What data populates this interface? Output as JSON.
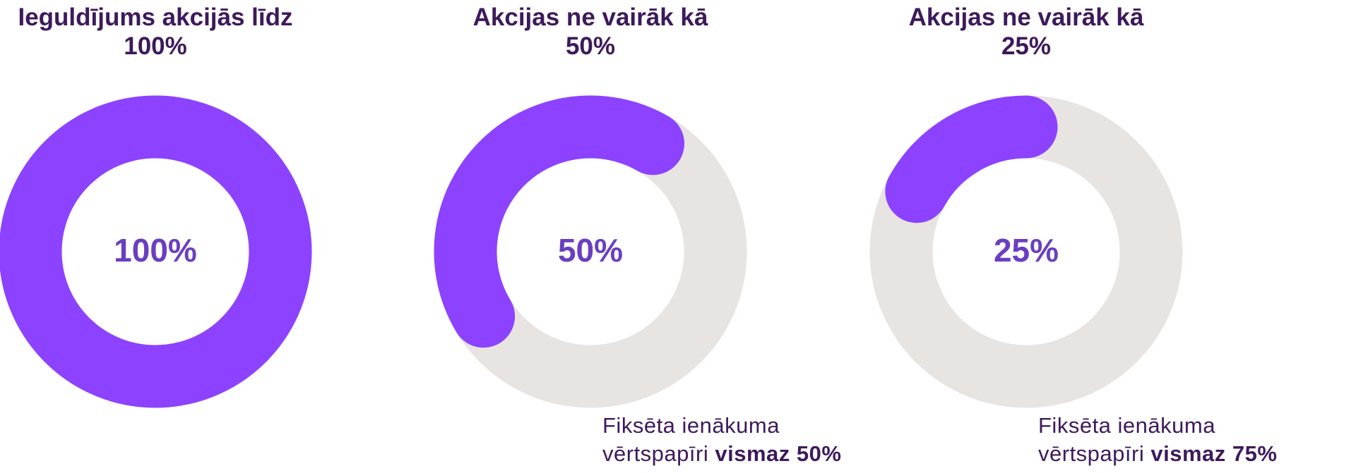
{
  "chart_data": [
    {
      "type": "donut",
      "title": "Ieguldījums akcijās līdz 100%",
      "values": [
        100
      ],
      "value_labels": [
        "100%"
      ],
      "color": "#8c42ff",
      "track_color": "#e8e4e1"
    },
    {
      "type": "donut",
      "title": "Akcijas ne vairāk kā 50%",
      "values": [
        50
      ],
      "value_labels": [
        "50%"
      ],
      "color": "#8c42ff",
      "track_color": "#e8e4e1",
      "caption": {
        "text": "Fiksēta ienākuma vērtspapīri",
        "emphasis": "vismaz 50%"
      }
    },
    {
      "type": "donut",
      "title": "Akcijas ne vairāk kā 25%",
      "values": [
        25
      ],
      "value_labels": [
        "25%"
      ],
      "color": "#8c42ff",
      "track_color": "#e8e4e1",
      "caption": {
        "text": "Fiksēta ienākuma vērtspapīri",
        "emphasis": "vismaz 75%"
      }
    }
  ]
}
